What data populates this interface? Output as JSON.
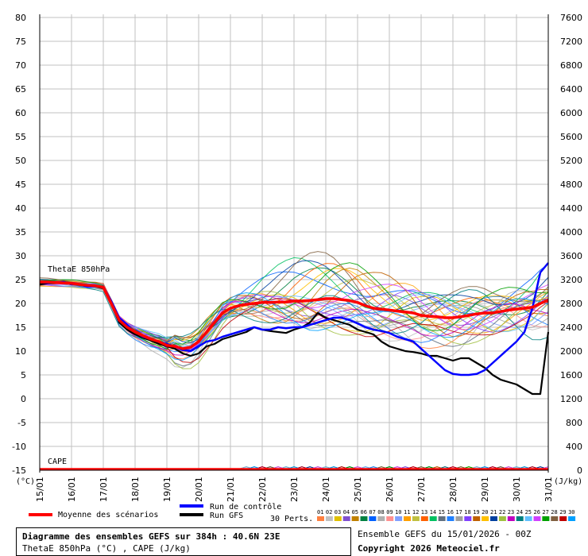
{
  "chart_data": {
    "type": "line",
    "title": "Diagramme des ensembles GEFS sur 384h : 40.6N 23E",
    "subtitle": "ThetaE 850hPa (°C) , CAPE (J/kg)",
    "ylabel_left": "(°C)",
    "ylabel_right": "(J/kg)",
    "ylim": [
      -15,
      80
    ],
    "y_ticks_left": [
      80,
      75,
      70,
      65,
      60,
      55,
      50,
      45,
      40,
      35,
      30,
      25,
      20,
      15,
      10,
      5,
      0,
      -5,
      -10,
      -15
    ],
    "y_ticks_right": [
      "7600",
      "7200",
      "6800",
      "6400",
      "6000",
      "5600",
      "5200",
      "4800",
      "4400",
      "4000",
      "3600",
      "3200",
      "2800",
      "2400",
      "2000",
      "1600",
      "1200",
      "800",
      "400",
      "0"
    ],
    "right_ylim": [
      0,
      7600
    ],
    "x_ticks": [
      "15/01",
      "16/01",
      "17/01",
      "18/01",
      "19/01",
      "20/01",
      "21/01",
      "22/01",
      "23/01",
      "24/01",
      "25/01",
      "26/01",
      "27/01",
      "28/01",
      "29/01",
      "30/01",
      "31/01"
    ],
    "grid": true,
    "panel_labels": {
      "thetae": "ThetaE 850hPa",
      "cape": "CAPE"
    },
    "x_hours": [
      0,
      6,
      12,
      18,
      24,
      30,
      36,
      42,
      48,
      54,
      60,
      66,
      72,
      78,
      84,
      90,
      96,
      102,
      108,
      114,
      120,
      126,
      132,
      138,
      144,
      150,
      156,
      162,
      168,
      174,
      180,
      186,
      192,
      198,
      204,
      210,
      216,
      222,
      228,
      234,
      240,
      246,
      252,
      258,
      264,
      270,
      276,
      282,
      288,
      294,
      300,
      306,
      312,
      318,
      324,
      330,
      336,
      342,
      348,
      354,
      360,
      366,
      372,
      378,
      384
    ],
    "series": [
      {
        "name": "Moyenne des scénarios",
        "color": "#ff0000",
        "values": [
          24.5,
          24.5,
          24.4,
          24.3,
          24.2,
          24,
          23.8,
          23.7,
          23.4,
          20,
          16.5,
          15,
          14,
          13.2,
          12.5,
          12,
          11.2,
          11,
          10.5,
          10.8,
          12,
          14,
          16,
          18,
          19,
          19.5,
          19.8,
          20,
          20.2,
          20.2,
          20.3,
          20.3,
          20.5,
          20.5,
          20.6,
          20.8,
          21,
          21,
          20.8,
          20.6,
          20.2,
          19.5,
          19,
          18.8,
          18.6,
          18.4,
          18.2,
          18,
          17.5,
          17.3,
          17.2,
          17,
          17,
          17.2,
          17.5,
          17.8,
          18,
          18,
          18.3,
          18.6,
          18.8,
          19,
          19.2,
          20,
          20.7
        ]
      },
      {
        "name": "Run de contrôle",
        "color": "#0000ff",
        "values": [
          24.5,
          24.3,
          24.5,
          24.5,
          24,
          24,
          23.5,
          23.6,
          23.5,
          20.5,
          17,
          15.5,
          14,
          13,
          12.5,
          12,
          11.5,
          11,
          10.2,
          10,
          11,
          12,
          12.3,
          13,
          13.5,
          14,
          14.5,
          15,
          14.5,
          14.5,
          15,
          14.8,
          15,
          15,
          15.5,
          16,
          16.5,
          17,
          17,
          16.5,
          15.8,
          15,
          14.5,
          14.2,
          13.8,
          13,
          12.5,
          12,
          10.5,
          9,
          7.5,
          6,
          5.2,
          5,
          5,
          5.2,
          6,
          7.5,
          9,
          10.5,
          12,
          14,
          19,
          26.5,
          28.5
        ]
      },
      {
        "name": "Run GFS",
        "color": "#000000",
        "values": [
          24,
          24.2,
          24.3,
          24.5,
          24.2,
          24,
          23.8,
          23.6,
          23.2,
          20,
          16,
          14.5,
          13.5,
          12.8,
          12.2,
          11.5,
          11,
          10.5,
          9.5,
          9,
          9.5,
          11,
          11.5,
          12.5,
          13,
          13.5,
          14,
          15,
          14.5,
          14.2,
          14,
          13.8,
          14.5,
          15,
          16,
          18,
          17,
          16.5,
          16,
          15.5,
          14.5,
          14,
          13.5,
          12,
          11,
          10.5,
          10,
          9.8,
          9.5,
          9,
          9,
          8.5,
          8,
          8.5,
          8.5,
          7.5,
          6.5,
          5,
          4,
          3.5,
          3,
          2,
          1,
          1,
          14
        ]
      }
    ],
    "perturbations_label": "30 Perts.",
    "perturbation_ids": [
      "01",
      "02",
      "03",
      "04",
      "05",
      "06",
      "07",
      "08",
      "09",
      "10",
      "11",
      "12",
      "13",
      "14",
      "15",
      "16",
      "17",
      "18",
      "19",
      "20",
      "21",
      "22",
      "23",
      "24",
      "25",
      "26",
      "27",
      "28",
      "29",
      "30"
    ],
    "perturbation_colors": [
      "#ff8040",
      "#c0c0c0",
      "#e0c000",
      "#8050d0",
      "#c08000",
      "#008040",
      "#0060ff",
      "#b0b0b0",
      "#ff9090",
      "#80a0ff",
      "#ffa000",
      "#c0c040",
      "#ff6000",
      "#00c060",
      "#607080",
      "#2080ff",
      "#a0a0a0",
      "#8040ff",
      "#c06000",
      "#ffc000",
      "#0040a0",
      "#a0c040",
      "#c000c0",
      "#008080",
      "#60c0ff",
      "#d040ff",
      "#00a000",
      "#806040",
      "#c00000",
      "#00a0ff"
    ],
    "perturbation_amplitude": [
      2.5,
      3.0,
      3.5,
      2.2,
      4.0,
      3.2,
      2.8,
      4.5,
      3.0,
      2.4,
      3.8,
      2.6,
      3.4,
      4.2,
      2.9,
      3.6,
      2.3,
      3.1,
      4.1,
      2.7,
      3.3,
      3.9,
      2.5,
      4.4,
      3.0,
      2.8,
      3.7,
      4.3,
      2.6,
      3.5
    ],
    "legend": {
      "mean": "Moyenne des scénarios",
      "control": "Run de contrôle",
      "gfs": "Run GFS",
      "perts": "30 Perts."
    }
  },
  "footer": {
    "title": "Diagramme des ensembles GEFS sur 384h : 40.6N 23E",
    "subtitle": "ThetaE 850hPa (°C) , CAPE (J/kg)",
    "run_info": "Ensemble GEFS du 15/01/2026 - 00Z",
    "copyright": "Copyright 2026 Meteociel.fr"
  },
  "colors": {
    "grid": "#c0c0c0",
    "axis": "#000000",
    "background": "#ffffff"
  }
}
